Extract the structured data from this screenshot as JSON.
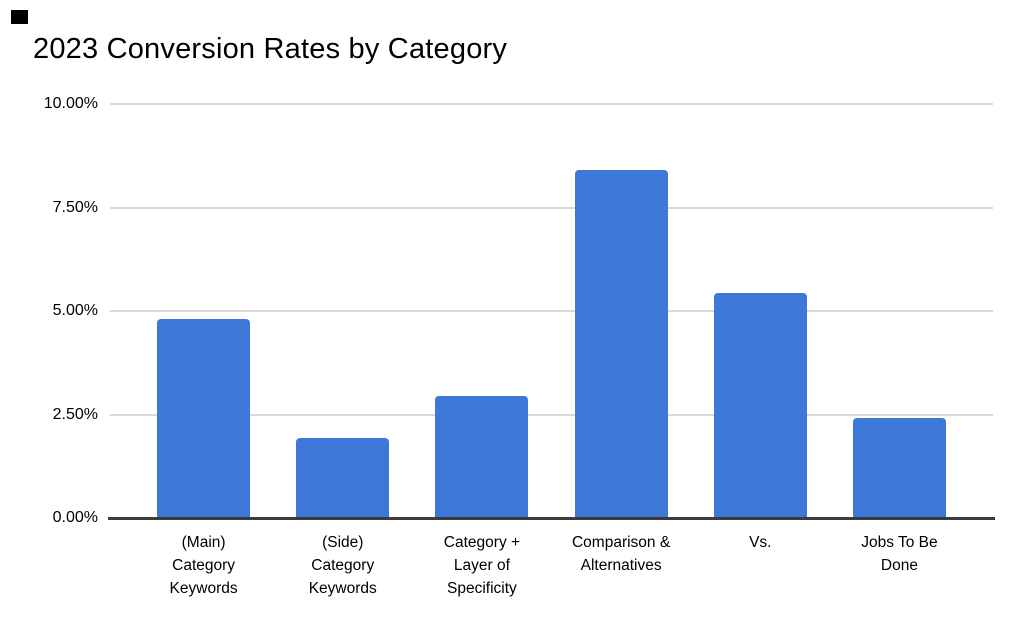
{
  "page": {
    "background": "#ffffff",
    "corner_artifact": true
  },
  "chart_data": {
    "type": "bar",
    "title": "2023 Conversion Rates by Category",
    "categories": [
      "(Main)\nCategory\nKeywords",
      "(Side)\nCategory\nKeywords",
      "Category +\nLayer of\nSpecificity",
      "Comparison &\nAlternatives",
      "Vs.",
      "Jobs To Be\nDone"
    ],
    "values": [
      4.82,
      1.93,
      2.95,
      8.4,
      5.44,
      2.42
    ],
    "value_unit": "%",
    "xlabel": "",
    "ylabel": "",
    "ylim": [
      0,
      10
    ],
    "y_ticks": [
      {
        "label": "10.00%",
        "value": 10
      },
      {
        "label": "7.50%",
        "value": 7.5
      },
      {
        "label": "5.00%",
        "value": 5
      },
      {
        "label": "2.50%",
        "value": 2.5
      },
      {
        "label": "0.00%",
        "value": 0
      }
    ],
    "grid": "horizontal",
    "legend_position": "none",
    "colors": {
      "bar": "#3d78d8",
      "gridline": "#d9d9d9",
      "axis_line": "#3c3c3c",
      "title_text": "#000000",
      "tick_text": "#000000"
    }
  }
}
